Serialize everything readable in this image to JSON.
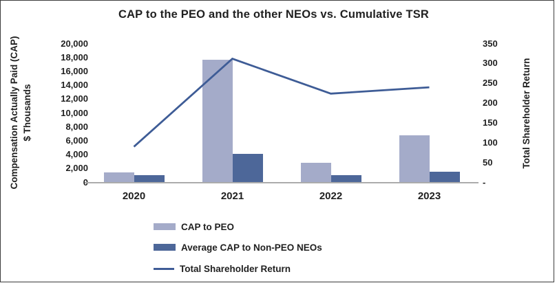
{
  "title_bar": {
    "window_title": "CAP to the PEO and the other NEOs vs. Cumulative TSR"
  },
  "left_axis": {
    "title_line1": "Compensation Actually Paid (CAP)",
    "title_line2": "$ Thousands",
    "max": 20000,
    "step": 2000,
    "tick_labels": [
      "20,000",
      "18,000",
      "16,000",
      "14,000",
      "12,000",
      "10,000",
      "8,000",
      "6,000",
      "4,000",
      "2,000",
      "0"
    ]
  },
  "right_axis": {
    "title": "Total Shareholder Return",
    "max": 350,
    "step": 50,
    "tick_labels": [
      "350",
      "300",
      "250",
      "200",
      "150",
      "100",
      "50",
      "-"
    ]
  },
  "chart_data": {
    "type": "combo-bar-line",
    "title": "CAP to the PEO and the other NEOs vs. Cumulative TSR",
    "categories": [
      "2020",
      "2021",
      "2022",
      "2023"
    ],
    "series": [
      {
        "name": "CAP to PEO",
        "kind": "bar",
        "axis": "left",
        "color": "#A4ABC9",
        "values": [
          1400,
          17700,
          2800,
          6800
        ]
      },
      {
        "name": "Average CAP to Non-PEO NEOs",
        "kind": "bar",
        "axis": "left",
        "color": "#4D6799",
        "values": [
          1050,
          4100,
          1000,
          1550
        ]
      },
      {
        "name": "Total Shareholder Return",
        "kind": "line",
        "axis": "right",
        "color": "#3E5C96",
        "values": [
          90,
          312,
          224,
          240
        ]
      }
    ],
    "ylabel_left": "Compensation Actually Paid (CAP) $ Thousands",
    "ylabel_right": "Total Shareholder Return",
    "ylim_left": [
      0,
      20000
    ],
    "ylim_right": [
      0,
      350
    ],
    "right_axis_zero_label": "-",
    "grid": false,
    "legend_position": "bottom-left",
    "axis_line_color": "#ABABAB",
    "text_color": "#1F1F1F"
  }
}
